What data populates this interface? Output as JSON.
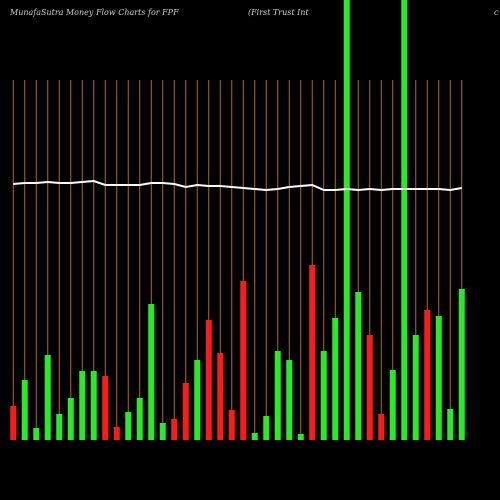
{
  "chart_data": {
    "type": "bar",
    "title": "MunafaSutra  Money Flow  Charts for FPF",
    "subtitle": "(First Trust Int",
    "subtitle_right": "c",
    "categories": [
      null,
      null,
      null,
      null,
      null,
      null,
      null,
      null,
      null,
      null,
      null,
      null,
      null,
      null,
      null,
      null,
      null,
      null,
      null,
      null,
      null,
      null,
      null,
      null,
      null,
      null,
      null,
      null,
      null,
      null,
      null,
      null,
      null,
      null,
      null,
      null,
      null,
      null,
      null,
      null
    ],
    "series": [
      {
        "name": null,
        "type": "bar",
        "values": [
          34,
          60,
          12,
          85,
          26,
          42,
          69,
          69,
          64,
          13,
          28,
          42,
          136,
          17,
          21,
          57,
          80,
          120,
          87,
          30,
          159,
          7,
          24,
          89,
          80,
          6,
          175,
          89,
          122,
          450,
          148,
          105,
          26,
          70,
          450,
          105,
          130,
          124,
          31,
          151
        ],
        "colors": [
          "#ff1a1a",
          "#22ee22",
          "#22ee22",
          "#22ee22",
          "#22ee22",
          "#22ee22",
          "#22ee22",
          "#22ee22",
          "#ff1a1a",
          "#ff1a1a",
          "#22ee22",
          "#22ee22",
          "#22ee22",
          "#22ee22",
          "#ff1a1a",
          "#ff1a1a",
          "#22ee22",
          "#ff1a1a",
          "#ff1a1a",
          "#ff1a1a",
          "#ff1a1a",
          "#22ee22",
          "#22ee22",
          "#22ee22",
          "#22ee22",
          "#22ee22",
          "#ff1a1a",
          "#22ee22",
          "#22ee22",
          "#22ee22",
          "#22ee22",
          "#ff1a1a",
          "#ff1a1a",
          "#22ee22",
          "#22ee22",
          "#22ee22",
          "#ff1a1a",
          "#22ee22",
          "#22ee22",
          "#22ee22"
        ]
      },
      {
        "name": null,
        "type": "line",
        "color": "#ffffff",
        "values": [
          256,
          257,
          257,
          258,
          257,
          257,
          258,
          259,
          255,
          255,
          255,
          255,
          257,
          257,
          256,
          253,
          255,
          254,
          254,
          253,
          252,
          251,
          250,
          251,
          253,
          254,
          255,
          250,
          250,
          251,
          250,
          251,
          250,
          251,
          251,
          251,
          251,
          251,
          250,
          252
        ]
      }
    ],
    "ylim": [
      0,
      440
    ],
    "grid_color": "#b06a10"
  }
}
